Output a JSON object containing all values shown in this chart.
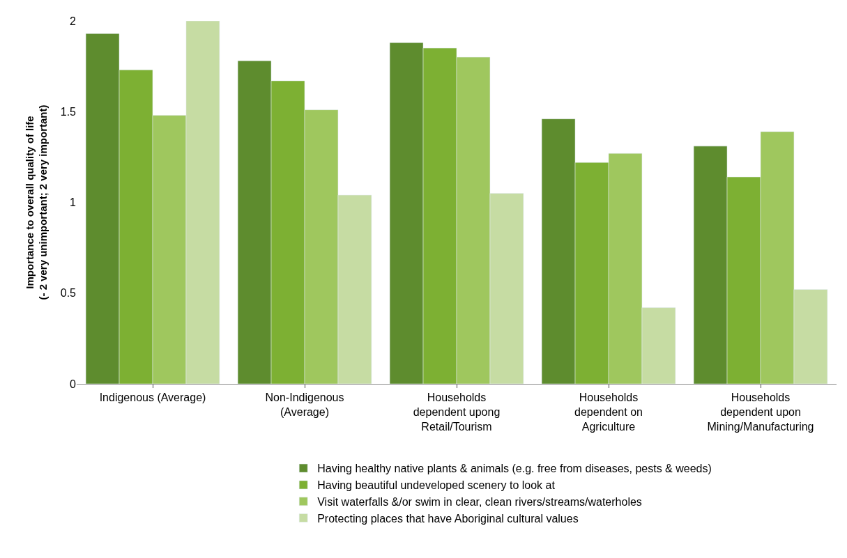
{
  "chart_data": {
    "type": "bar",
    "ylabel": "Importance to overall quality of life\n(- 2 very unimportant; 2 very important)",
    "categories": [
      "Indigenous (Average)",
      "Non-Indigenous\n(Average)",
      "Households\ndependent upong\nRetail/Tourism",
      "Households\ndependent on\nAgriculture",
      "Households\ndependent upon\nMining/Manufacturing"
    ],
    "series": [
      {
        "name": "Having healthy native plants & animals (e.g. free from diseases, pests & weeds)",
        "color": "#5e8c2e",
        "values": [
          1.93,
          1.78,
          1.88,
          1.46,
          1.31
        ]
      },
      {
        "name": "Having beautiful undeveloped scenery to look at",
        "color": "#7db033",
        "values": [
          1.73,
          1.67,
          1.85,
          1.22,
          1.14
        ]
      },
      {
        "name": "Visit waterfalls &/or swim in clear, clean rivers/streams/waterholes",
        "color": "#9fc75e",
        "values": [
          1.48,
          1.51,
          1.8,
          1.27,
          1.39
        ]
      },
      {
        "name": "Protecting places that have Aboriginal cultural values",
        "color": "#c6dca3",
        "values": [
          2.0,
          1.04,
          1.05,
          0.42,
          0.52
        ]
      }
    ],
    "ylim": [
      0,
      2
    ],
    "yticks": [
      0,
      0.5,
      1,
      1.5,
      2
    ],
    "legend": "bottom"
  }
}
